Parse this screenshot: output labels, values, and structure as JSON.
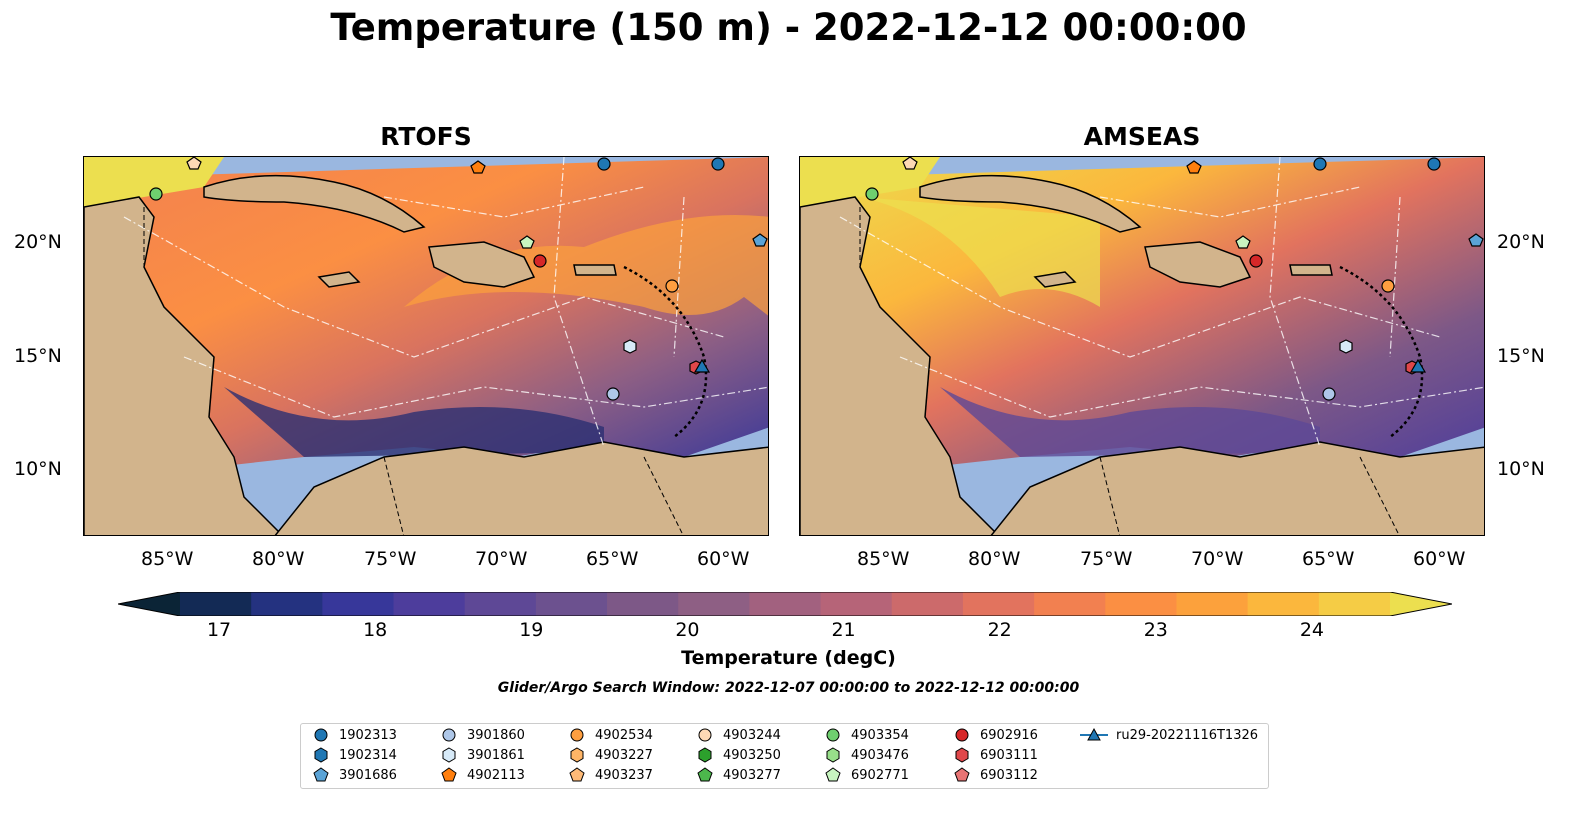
{
  "title": "Temperature (150 m) - 2022-12-12 00:00:00",
  "panels": [
    {
      "title": "RTOFS"
    },
    {
      "title": "AMSEAS"
    }
  ],
  "axes": {
    "lon_labels": [
      "85°W",
      "80°W",
      "75°W",
      "70°W",
      "65°W",
      "60°W"
    ],
    "lat_labels": [
      "20°N",
      "15°N",
      "10°N"
    ]
  },
  "colorbar": {
    "label": "Temperature (degC)",
    "ticks": [
      "17",
      "18",
      "19",
      "20",
      "21",
      "22",
      "23",
      "24"
    ],
    "range": [
      16.75,
      24.5
    ],
    "colors": [
      "#0b2436",
      "#132a55",
      "#243280",
      "#37379a",
      "#4d3d9c",
      "#5e4896",
      "#6c518f",
      "#7d5887",
      "#8e5f84",
      "#a2617f",
      "#b66478",
      "#cc6a6b",
      "#e2735e",
      "#f28050",
      "#fb8f43",
      "#fca13c",
      "#fbb73d",
      "#f5cc45",
      "#ecdf4f"
    ]
  },
  "search_window": "Glider/Argo Search Window: 2022-12-07 00:00:00 to 2022-12-12 00:00:00",
  "map_colors": {
    "land": "#d2b48c",
    "ocean": "#9ab7e0",
    "border": "#000000",
    "transect": "#ffffff"
  },
  "legend": {
    "items": [
      {
        "label": "1902313",
        "marker": "circle",
        "color": "#1f77b4"
      },
      {
        "label": "1902314",
        "marker": "hexagon",
        "color": "#1f77b4"
      },
      {
        "label": "3901686",
        "marker": "pentagon",
        "color": "#5aa3d6"
      },
      {
        "label": "3901860",
        "marker": "circle",
        "color": "#aec7e8"
      },
      {
        "label": "3901861",
        "marker": "hexagon",
        "color": "#d7eaf8"
      },
      {
        "label": "4902113",
        "marker": "pentagon",
        "color": "#ff7f0e"
      },
      {
        "label": "4902534",
        "marker": "circle",
        "color": "#ff9f40"
      },
      {
        "label": "4903227",
        "marker": "hexagon",
        "color": "#ffb566"
      },
      {
        "label": "4903237",
        "marker": "pentagon",
        "color": "#ffbb78"
      },
      {
        "label": "4903244",
        "marker": "circle",
        "color": "#fdd9b5"
      },
      {
        "label": "4903250",
        "marker": "hexagon",
        "color": "#2ca02c"
      },
      {
        "label": "4903277",
        "marker": "pentagon",
        "color": "#4cb84c"
      },
      {
        "label": "4903354",
        "marker": "circle",
        "color": "#6fcf6f"
      },
      {
        "label": "4903476",
        "marker": "hexagon",
        "color": "#98df8a"
      },
      {
        "label": "6902771",
        "marker": "pentagon",
        "color": "#c8f5c0"
      },
      {
        "label": "6902916",
        "marker": "circle",
        "color": "#d62728"
      },
      {
        "label": "6903111",
        "marker": "hexagon",
        "color": "#e0474a"
      },
      {
        "label": "6903112",
        "marker": "pentagon",
        "color": "#e87474"
      },
      {
        "label": "ru29-20221116T1326",
        "marker": "triangle-line",
        "color": "#1f77b4"
      }
    ]
  }
}
